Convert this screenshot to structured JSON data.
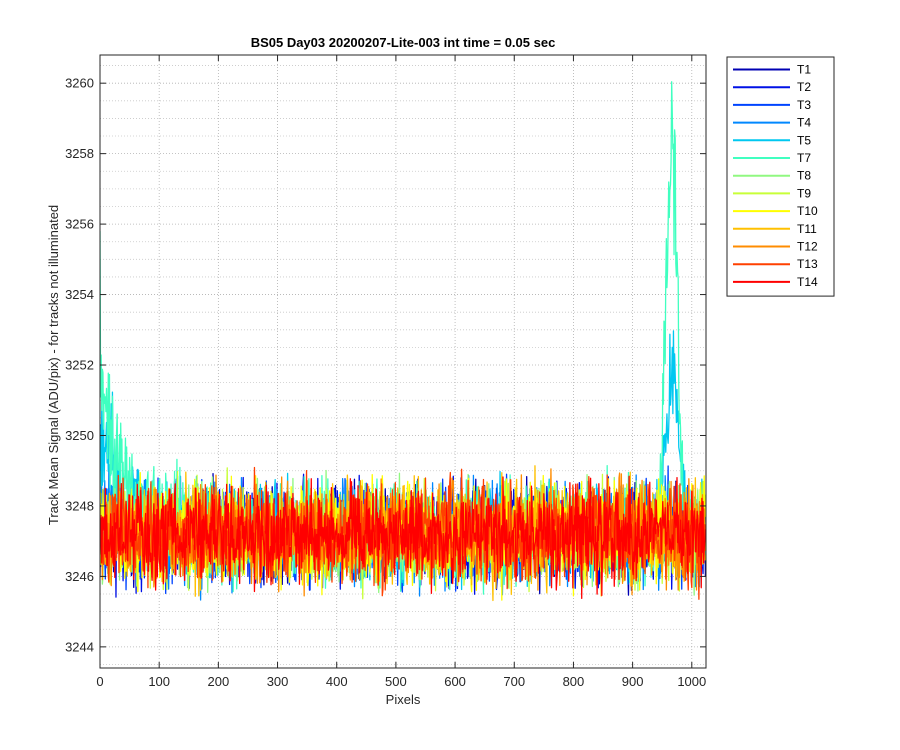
{
  "chart_data": {
    "type": "line",
    "title": "BS05 Day03 20200207-Lite-003 int time = 0.05 sec",
    "xlabel": "Pixels",
    "ylabel": "Track Mean Signal (ADU/pix) - for tracks not illuminated",
    "xlim": [
      0,
      1024
    ],
    "ylim": [
      3243.4,
      3260.8
    ],
    "xticks": [
      0,
      100,
      200,
      300,
      400,
      500,
      600,
      700,
      800,
      900,
      1000
    ],
    "yticks": [
      3244,
      3246,
      3248,
      3250,
      3252,
      3254,
      3256,
      3258,
      3260
    ],
    "grid": true,
    "minor_grid": true,
    "legend_position": "outside-top-right",
    "n_points": 1024,
    "baseline": 3247.2,
    "noise_half_range": 2.0,
    "series": [
      {
        "name": "T1",
        "color": "#0000b3"
      },
      {
        "name": "T2",
        "color": "#0011e6"
      },
      {
        "name": "T3",
        "color": "#0044ff"
      },
      {
        "name": "T4",
        "color": "#0088ff"
      },
      {
        "name": "T5",
        "color": "#00c8f0",
        "feature": "spike near pixel 965 to ~3253, elevated at start ~3251"
      },
      {
        "name": "T7",
        "color": "#40ffc0",
        "feature": "spike near pixel 965 to ~3260.8, elevated at start ~3252 decaying by pixel 200"
      },
      {
        "name": "T8",
        "color": "#90f880"
      },
      {
        "name": "T9",
        "color": "#c8ff38"
      },
      {
        "name": "T10",
        "color": "#ffff00"
      },
      {
        "name": "T11",
        "color": "#ffc000"
      },
      {
        "name": "T12",
        "color": "#ff8c00"
      },
      {
        "name": "T13",
        "color": "#ff4000"
      },
      {
        "name": "T14",
        "color": "#ff0000"
      }
    ]
  }
}
